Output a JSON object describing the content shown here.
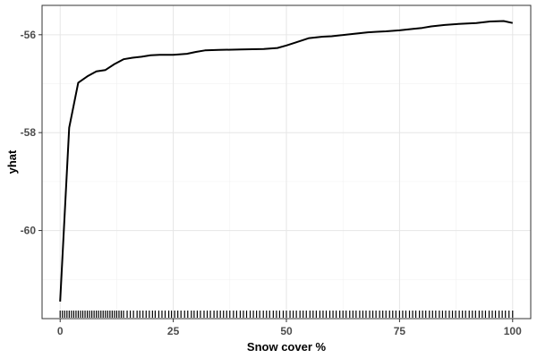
{
  "chart_data": {
    "type": "line",
    "title": "",
    "xlabel": "Snow cover %",
    "ylabel": "yhat",
    "xlim": [
      -4,
      104
    ],
    "ylim": [
      -61.8,
      -55.4
    ],
    "grid": true,
    "legend": "none",
    "x_ticks": [
      0,
      25,
      50,
      75,
      100
    ],
    "y_ticks": [
      -60,
      -58,
      -56
    ],
    "x_tick_labels": [
      "0",
      "25",
      "50",
      "75",
      "100"
    ],
    "y_tick_labels": [
      "-60",
      "-58",
      "-56"
    ],
    "series": [
      {
        "x": [
          0,
          2,
          4,
          6,
          8,
          10,
          12,
          14,
          16,
          18,
          20,
          22,
          25,
          28,
          30,
          32,
          35,
          40,
          45,
          48,
          50,
          52,
          55,
          58,
          60,
          62,
          65,
          68,
          70,
          72,
          75,
          78,
          80,
          82,
          85,
          88,
          90,
          92,
          95,
          98,
          100
        ],
        "y": [
          -61.45,
          -57.9,
          -56.98,
          -56.85,
          -56.75,
          -56.72,
          -56.6,
          -56.5,
          -56.47,
          -56.45,
          -56.42,
          -56.41,
          -56.41,
          -56.39,
          -56.35,
          -56.32,
          -56.31,
          -56.3,
          -56.29,
          -56.27,
          -56.22,
          -56.16,
          -56.07,
          -56.04,
          -56.03,
          -56.01,
          -55.98,
          -55.95,
          -55.94,
          -55.93,
          -55.91,
          -55.88,
          -55.86,
          -55.83,
          -55.8,
          -55.78,
          -55.77,
          -55.76,
          -55.73,
          -55.72,
          -55.76
        ]
      }
    ],
    "rug_x": [
      0,
      0.5,
      1,
      1.5,
      2,
      2.5,
      3,
      3.5,
      4,
      4.5,
      5,
      5.5,
      6,
      6.5,
      7,
      7.5,
      8,
      8.5,
      9,
      9.5,
      10,
      10.5,
      11,
      11.5,
      12,
      12.5,
      13,
      13.5,
      14,
      14.8,
      15.5,
      16.2,
      17,
      17.6,
      18.3,
      19,
      19.7,
      20.4,
      21,
      21.8,
      22.5,
      23.2,
      24,
      24.6,
      25.3,
      26,
      26.7,
      27.5,
      28.2,
      29,
      29.6,
      30.3,
      31,
      31.8,
      32.5,
      33.2,
      34,
      34.7,
      35.4,
      36.1,
      36.8,
      37.5,
      38.3,
      39,
      39.8,
      40.5,
      41.2,
      42,
      42.7,
      43.4,
      44.1,
      44.9,
      45.6,
      46.3,
      47.1,
      47.8,
      48.5,
      49.3,
      50,
      50.8,
      51.5,
      52.2,
      53,
      53.7,
      54.4,
      55.2,
      55.9,
      56.6,
      57.4,
      58.1,
      58.8,
      59.6,
      60.3,
      61,
      61.8,
      62.5,
      63.2,
      64,
      64.7,
      65.4,
      66.2,
      66.9,
      67.6,
      68.4,
      69.1,
      69.8,
      70.6,
      71.3,
      72,
      72.8,
      73.5,
      74.2,
      75,
      75.7,
      76.4,
      77.2,
      77.9,
      78.6,
      79.4,
      80.1,
      80.8,
      81.6,
      82.3,
      83,
      83.8,
      84.5,
      85.2,
      86,
      86.7,
      87.4,
      88.2,
      88.9,
      89.6,
      90.4,
      91.1,
      91.8,
      92.6,
      93.3,
      94,
      94.8,
      95.5,
      96.2,
      97,
      97.7,
      98.4,
      99.2,
      100
    ]
  }
}
